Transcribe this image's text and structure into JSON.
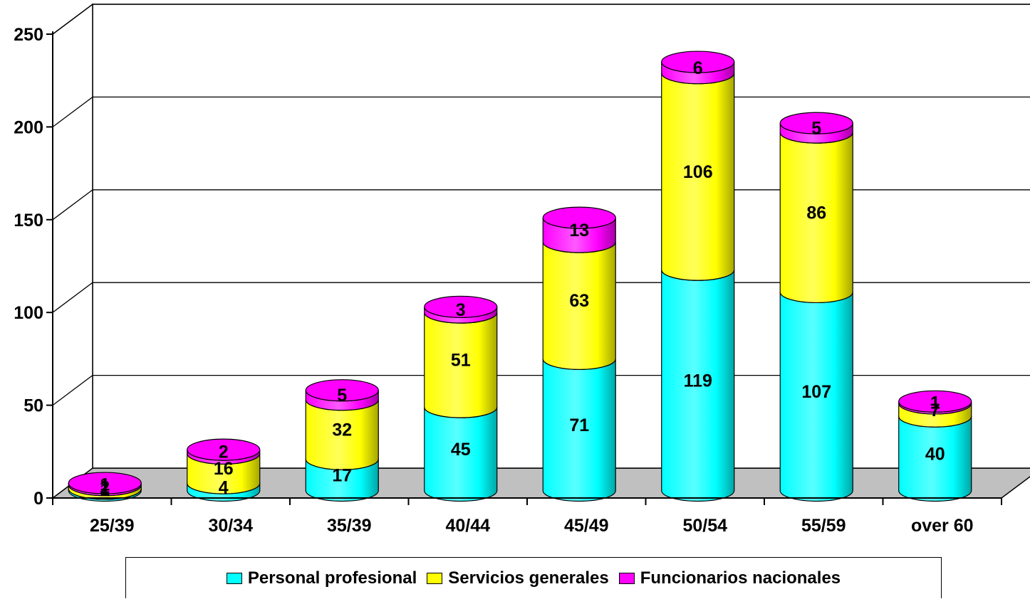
{
  "chart_data": {
    "type": "bar",
    "stacked": true,
    "categories": [
      "25/39",
      "30/34",
      "35/39",
      "40/44",
      "45/49",
      "50/54",
      "55/59",
      "over 60"
    ],
    "series": [
      {
        "name": "Personal profesional",
        "color": "#00FFFF",
        "values": [
          1,
          4,
          17,
          45,
          71,
          119,
          107,
          40
        ]
      },
      {
        "name": "Servicios generales",
        "color": "#FFFF00",
        "values": [
          2,
          16,
          32,
          51,
          63,
          106,
          86,
          7
        ]
      },
      {
        "name": "Funcionarios nacionales",
        "color": "#FF00FF",
        "values": [
          1,
          2,
          5,
          3,
          13,
          6,
          5,
          1
        ]
      }
    ],
    "ylim": [
      0,
      250
    ],
    "yticks": [
      0,
      50,
      100,
      150,
      200,
      250
    ],
    "title": "",
    "xlabel": "",
    "ylabel": "",
    "grid": true,
    "legend_position": "bottom",
    "floor_color": "#C0C0C0"
  }
}
